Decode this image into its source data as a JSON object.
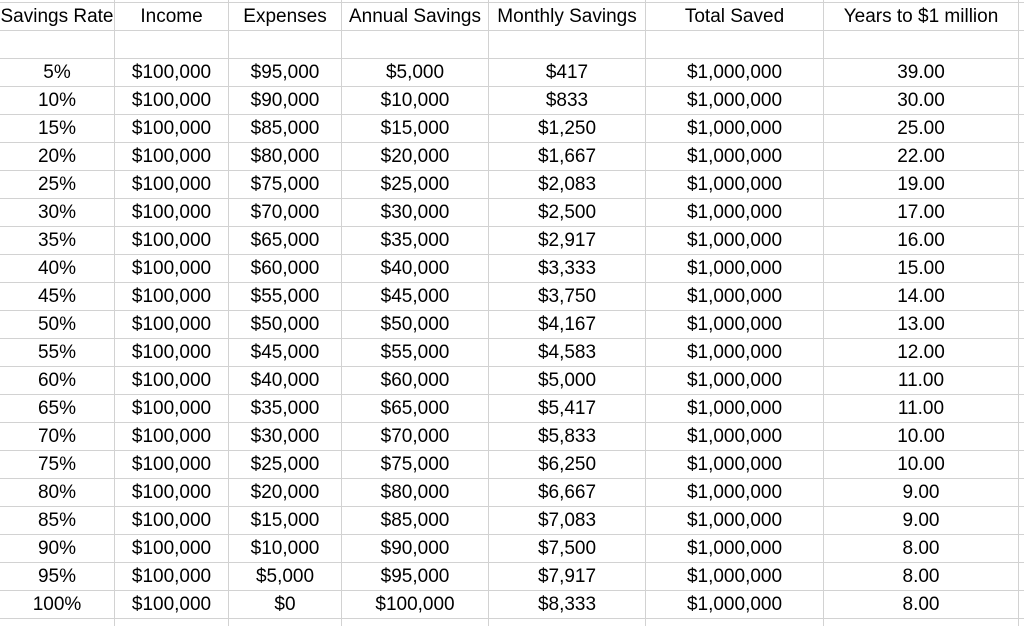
{
  "sheet": {
    "columns": [
      "Savings Rate",
      "Income",
      "Expenses",
      "Annual Savings",
      "Monthly Savings",
      "Total Saved",
      "Years to $1 million"
    ],
    "rows": [
      [
        "5%",
        "$100,000",
        "$95,000",
        "$5,000",
        "$417",
        "$1,000,000",
        "39.00"
      ],
      [
        "10%",
        "$100,000",
        "$90,000",
        "$10,000",
        "$833",
        "$1,000,000",
        "30.00"
      ],
      [
        "15%",
        "$100,000",
        "$85,000",
        "$15,000",
        "$1,250",
        "$1,000,000",
        "25.00"
      ],
      [
        "20%",
        "$100,000",
        "$80,000",
        "$20,000",
        "$1,667",
        "$1,000,000",
        "22.00"
      ],
      [
        "25%",
        "$100,000",
        "$75,000",
        "$25,000",
        "$2,083",
        "$1,000,000",
        "19.00"
      ],
      [
        "30%",
        "$100,000",
        "$70,000",
        "$30,000",
        "$2,500",
        "$1,000,000",
        "17.00"
      ],
      [
        "35%",
        "$100,000",
        "$65,000",
        "$35,000",
        "$2,917",
        "$1,000,000",
        "16.00"
      ],
      [
        "40%",
        "$100,000",
        "$60,000",
        "$40,000",
        "$3,333",
        "$1,000,000",
        "15.00"
      ],
      [
        "45%",
        "$100,000",
        "$55,000",
        "$45,000",
        "$3,750",
        "$1,000,000",
        "14.00"
      ],
      [
        "50%",
        "$100,000",
        "$50,000",
        "$50,000",
        "$4,167",
        "$1,000,000",
        "13.00"
      ],
      [
        "55%",
        "$100,000",
        "$45,000",
        "$55,000",
        "$4,583",
        "$1,000,000",
        "12.00"
      ],
      [
        "60%",
        "$100,000",
        "$40,000",
        "$60,000",
        "$5,000",
        "$1,000,000",
        "11.00"
      ],
      [
        "65%",
        "$100,000",
        "$35,000",
        "$65,000",
        "$5,417",
        "$1,000,000",
        "11.00"
      ],
      [
        "70%",
        "$100,000",
        "$30,000",
        "$70,000",
        "$5,833",
        "$1,000,000",
        "10.00"
      ],
      [
        "75%",
        "$100,000",
        "$25,000",
        "$75,000",
        "$6,250",
        "$1,000,000",
        "10.00"
      ],
      [
        "80%",
        "$100,000",
        "$20,000",
        "$80,000",
        "$6,667",
        "$1,000,000",
        "9.00"
      ],
      [
        "85%",
        "$100,000",
        "$15,000",
        "$85,000",
        "$7,083",
        "$1,000,000",
        "9.00"
      ],
      [
        "90%",
        "$100,000",
        "$10,000",
        "$90,000",
        "$7,500",
        "$1,000,000",
        "8.00"
      ],
      [
        "95%",
        "$100,000",
        "$5,000",
        "$95,000",
        "$7,917",
        "$1,000,000",
        "8.00"
      ],
      [
        "100%",
        "$100,000",
        "$0",
        "$100,000",
        "$8,333",
        "$1,000,000",
        "8.00"
      ]
    ],
    "colors": {
      "gridline": "#d2d2d2",
      "background": "#ffffff",
      "text": "#000000"
    }
  }
}
